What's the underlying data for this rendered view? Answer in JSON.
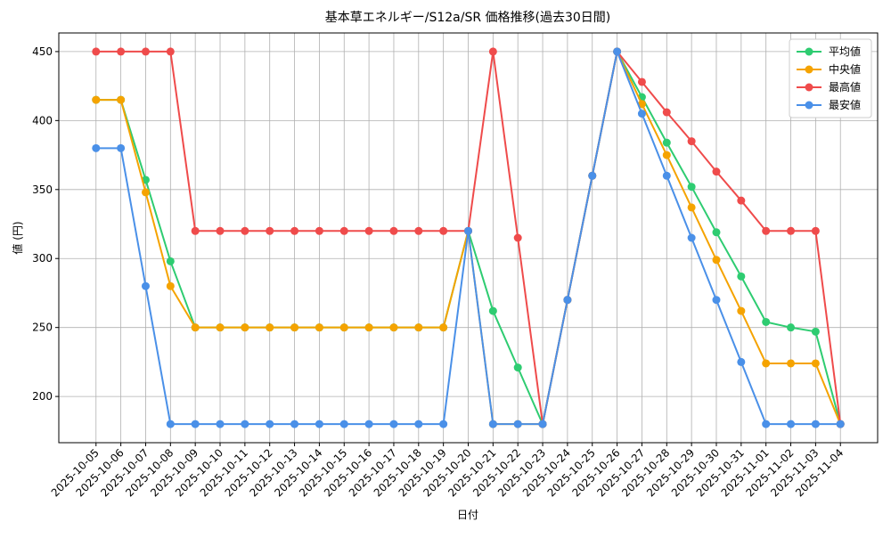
{
  "chart_data": {
    "type": "line",
    "title": "基本草エネルギー/S12a/SR 価格推移(過去30日間)",
    "x_label": "日付",
    "y_label": "値 (円)",
    "categories": [
      "2025-10-05",
      "2025-10-06",
      "2025-10-07",
      "2025-10-08",
      "2025-10-09",
      "2025-10-10",
      "2025-10-11",
      "2025-10-12",
      "2025-10-13",
      "2025-10-14",
      "2025-10-15",
      "2025-10-16",
      "2025-10-17",
      "2025-10-18",
      "2025-10-19",
      "2025-10-20",
      "2025-10-21",
      "2025-10-22",
      "2025-10-23",
      "2025-10-24",
      "2025-10-25",
      "2025-10-26",
      "2025-10-27",
      "2025-10-28",
      "2025-10-29",
      "2025-10-30",
      "2025-10-31",
      "2025-11-01",
      "2025-11-02",
      "2025-11-03",
      "2025-11-04"
    ],
    "series": [
      {
        "name": "平均値",
        "color": "#2ecc71",
        "values": [
          415,
          415,
          357,
          298,
          250,
          250,
          250,
          250,
          250,
          250,
          250,
          250,
          250,
          250,
          250,
          320,
          262,
          221,
          180,
          270,
          360,
          450,
          417,
          384,
          352,
          319,
          287,
          254,
          250,
          247,
          180
        ]
      },
      {
        "name": "中央値",
        "color": "#f5a300",
        "values": [
          415,
          415,
          348,
          280,
          250,
          250,
          250,
          250,
          250,
          250,
          250,
          250,
          250,
          250,
          250,
          320,
          180,
          180,
          180,
          270,
          360,
          450,
          412,
          375,
          337,
          299,
          262,
          224,
          224,
          224,
          180
        ]
      },
      {
        "name": "最高値",
        "color": "#ef4b4b",
        "values": [
          450,
          450,
          450,
          450,
          320,
          320,
          320,
          320,
          320,
          320,
          320,
          320,
          320,
          320,
          320,
          320,
          450,
          315,
          180,
          270,
          360,
          450,
          428,
          406,
          385,
          363,
          342,
          320,
          320,
          320,
          180
        ]
      },
      {
        "name": "最安値",
        "color": "#4a90e8",
        "values": [
          380,
          380,
          280,
          180,
          180,
          180,
          180,
          180,
          180,
          180,
          180,
          180,
          180,
          180,
          180,
          320,
          180,
          180,
          180,
          270,
          360,
          450,
          405,
          360,
          315,
          270,
          225,
          180,
          180,
          180,
          180
        ]
      }
    ],
    "ylim": [
      166.5,
      463.5
    ],
    "yticks": [
      200,
      250,
      300,
      350,
      400,
      450
    ],
    "grid": true,
    "legend": "upper right"
  }
}
